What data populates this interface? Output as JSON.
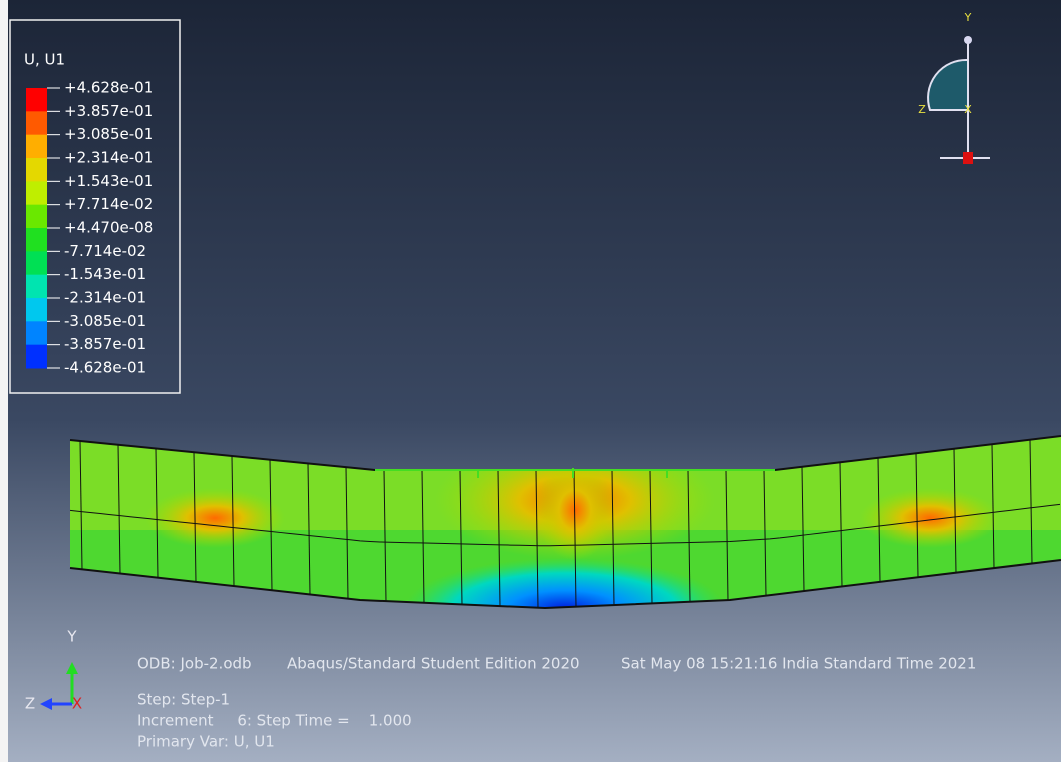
{
  "legend": {
    "title": "U, U1",
    "labels": [
      "+4.628e-01",
      "+3.857e-01",
      "+3.085e-01",
      "+2.314e-01",
      "+1.543e-01",
      "+7.714e-02",
      "+4.470e-08",
      "-7.714e-02",
      "-1.543e-01",
      "-2.314e-01",
      "-3.085e-01",
      "-3.857e-01",
      "-4.628e-01"
    ],
    "colors": [
      "#ff0000",
      "#ff5a00",
      "#ffae00",
      "#e4d800",
      "#bfee00",
      "#6ae800",
      "#20e020",
      "#00e054",
      "#00e4b0",
      "#00c8ee",
      "#0084ff",
      "#0030ff"
    ]
  },
  "triad_top": {
    "y": "Y",
    "z": "Z",
    "x": "X"
  },
  "triad_bottom": {
    "y": "Y",
    "z": "Z",
    "x": "X"
  },
  "info": {
    "odb": "ODB: Job-2.odb",
    "edition": "Abaqus/Standard Student Edition 2020",
    "date": "Sat May 08 15:21:16 India Standard Time 2021",
    "step": "Step: Step-1",
    "increment": "Increment     6: Step Time =    1.000",
    "primary_var": "Primary Var: U, U1"
  }
}
